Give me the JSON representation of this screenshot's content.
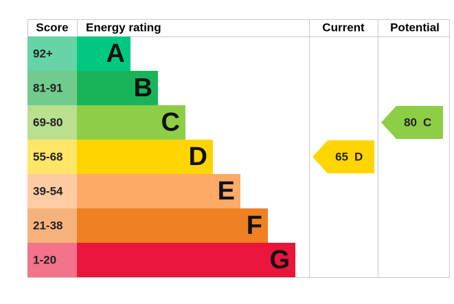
{
  "header": {
    "score": "Score",
    "rating": "Energy rating",
    "current": "Current",
    "potential": "Potential"
  },
  "bands": [
    {
      "range": "92+",
      "letter": "A",
      "color": "#00c781",
      "light": "#66d4a6"
    },
    {
      "range": "81-91",
      "letter": "B",
      "color": "#19b459",
      "light": "#72cb8e"
    },
    {
      "range": "69-80",
      "letter": "C",
      "color": "#8dce46",
      "light": "#badf8f"
    },
    {
      "range": "55-68",
      "letter": "D",
      "color": "#ffd500",
      "light": "#ffe666"
    },
    {
      "range": "39-54",
      "letter": "E",
      "color": "#fcaa65",
      "light": "#fdcca3"
    },
    {
      "range": "21-38",
      "letter": "F",
      "color": "#ef8023",
      "light": "#f5b37b"
    },
    {
      "range": "1-20",
      "letter": "G",
      "color": "#e9153b",
      "light": "#f2738a"
    }
  ],
  "current": {
    "score": 65,
    "band": "D"
  },
  "potential": {
    "score": 80,
    "band": "C"
  }
}
